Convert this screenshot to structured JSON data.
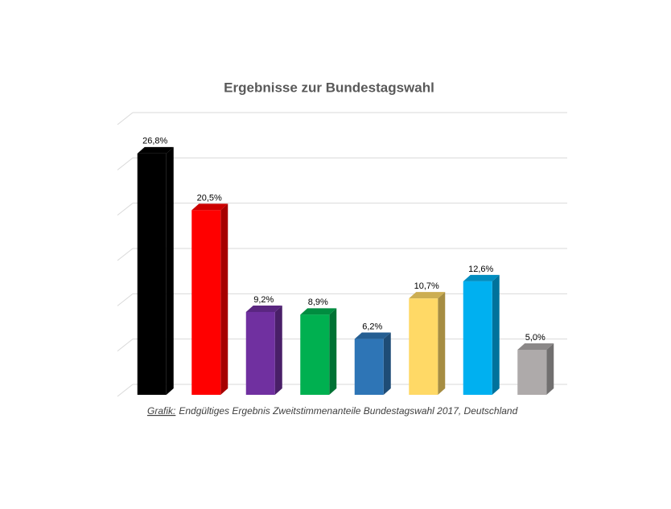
{
  "chart_data": {
    "type": "bar3d",
    "title": "Ergebnisse zur Bundestagswahl",
    "values": [
      26.8,
      20.5,
      9.2,
      8.9,
      6.2,
      10.7,
      12.6,
      5.0
    ],
    "value_labels": [
      "26,8%",
      "20,5%",
      "9,2%",
      "8,9%",
      "6,2%",
      "10,7%",
      "12,6%",
      "5,0%"
    ],
    "colors": [
      "#000000",
      "#ff0000",
      "#7030a0",
      "#00b050",
      "#2e75b6",
      "#ffd966",
      "#00b0f0",
      "#aeaaaa"
    ],
    "ylim": [
      0,
      30
    ],
    "yticks": [
      0,
      5,
      10,
      15,
      20,
      25,
      30
    ],
    "grid": true,
    "source_label": "Grafik:",
    "source": "Endgültiges Ergebnis Zweitstimmenanteile Bundestagswahl 2017, Deutschland"
  }
}
